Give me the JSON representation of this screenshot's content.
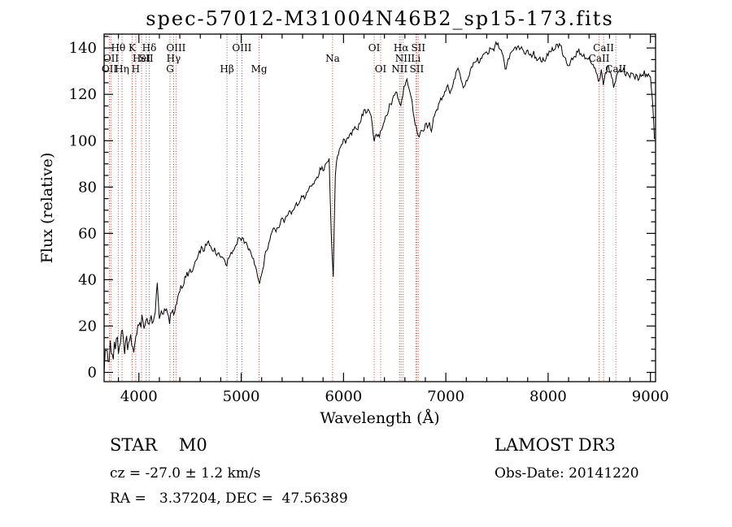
{
  "header": {
    "title": "spec-57012-M31004N46B2_sp15-173.fits"
  },
  "footer": {
    "left": {
      "class_line": "STAR    M0",
      "cz_line": "cz = -27.0 ± 1.2 km/s",
      "ra_dec_line": "RA =   3.37204, DEC =  47.56389"
    },
    "right": {
      "survey": "LAMOST DR3",
      "obs_date_line": "Obs-Date: 20141220"
    }
  },
  "chart_data": {
    "type": "line",
    "title": "spec-57012-M31004N46B2_sp15-173.fits",
    "xlabel": "Wavelength (Å)",
    "ylabel": "Flux (relative)",
    "xlim": [
      3660,
      9050
    ],
    "ylim": [
      -4,
      146
    ],
    "x_ticks": [
      4000,
      5000,
      6000,
      7000,
      8000,
      9000
    ],
    "x_minor_step": 200,
    "y_ticks": [
      0,
      20,
      40,
      60,
      80,
      100,
      120,
      140
    ],
    "y_minor_step": 5,
    "grid": false,
    "legend": "none",
    "line_color": "#000000",
    "marker_color": "#ab4437",
    "marker_label_color": "#8b2218",
    "spectral_lines": [
      {
        "wave": 3712,
        "label": "OII",
        "row": 3
      },
      {
        "wave": 3727,
        "label": "OII",
        "row": 2
      },
      {
        "wave": 3798,
        "label": "Hθ",
        "row": 1
      },
      {
        "wave": 3835,
        "label": "Hη",
        "row": 3
      },
      {
        "wave": 3934,
        "label": "K",
        "row": 1
      },
      {
        "wave": 3969,
        "label": "H",
        "row": 3
      },
      {
        "wave": 4026,
        "label": "HeI",
        "row": 2
      },
      {
        "wave": 4072,
        "label": "SII",
        "row": 2
      },
      {
        "wave": 4101,
        "label": "Hδ",
        "row": 1
      },
      {
        "wave": 4304,
        "label": "G",
        "row": 3
      },
      {
        "wave": 4340,
        "label": "Hγ",
        "row": 2
      },
      {
        "wave": 4363,
        "label": "OIII",
        "row": 1
      },
      {
        "wave": 4861,
        "label": "Hβ",
        "row": 3
      },
      {
        "wave": 4959,
        "label": "",
        "row": 0
      },
      {
        "wave": 5007,
        "label": "OIII",
        "row": 1
      },
      {
        "wave": 5175,
        "label": "Mg",
        "row": 3
      },
      {
        "wave": 5893,
        "label": "Na",
        "row": 2
      },
      {
        "wave": 6300,
        "label": "OI",
        "row": 1
      },
      {
        "wave": 6363,
        "label": "OI",
        "row": 3
      },
      {
        "wave": 6548,
        "label": "NII",
        "row": 3
      },
      {
        "wave": 6563,
        "label": "Hα",
        "row": 1
      },
      {
        "wave": 6583,
        "label": "NII",
        "row": 2
      },
      {
        "wave": 6707,
        "label": "Li",
        "row": 2
      },
      {
        "wave": 6716,
        "label": "SII",
        "row": 3
      },
      {
        "wave": 6731,
        "label": "SII",
        "row": 1
      },
      {
        "wave": 8498,
        "label": "CaII",
        "row": 2
      },
      {
        "wave": 8542,
        "label": "CaII",
        "row": 1
      },
      {
        "wave": 8662,
        "label": "CaII",
        "row": 3
      }
    ],
    "series": [
      {
        "name": "flux",
        "x_start": 3660,
        "x_step": 20,
        "values": [
          2,
          9,
          4,
          13,
          6,
          11,
          15,
          8,
          12,
          16,
          9,
          14,
          11,
          15,
          9,
          13,
          17,
          21,
          19,
          22,
          20,
          23,
          21,
          24,
          22,
          25,
          38,
          24,
          26,
          24,
          27,
          25,
          22,
          26,
          24,
          29,
          33,
          36,
          37,
          39,
          41,
          42,
          44,
          43,
          46,
          48,
          50,
          52,
          54,
          53,
          55,
          56,
          54,
          53,
          54,
          51,
          52,
          50,
          49,
          48,
          46,
          50,
          52,
          53,
          54,
          56,
          58,
          57,
          58,
          56,
          55,
          53,
          51,
          49,
          46,
          42,
          38,
          42,
          46,
          52,
          54,
          57,
          60,
          62,
          61,
          63,
          64,
          66,
          65,
          67,
          68,
          70,
          69,
          71,
          73,
          72,
          74,
          76,
          75,
          77,
          79,
          80,
          82,
          83,
          84,
          86,
          88,
          87,
          89,
          91,
          92,
          60,
          42,
          85,
          94,
          96,
          98,
          100,
          99,
          101,
          103,
          102,
          105,
          106,
          105,
          108,
          111,
          113,
          112,
          114,
          112,
          108,
          100,
          103,
          102,
          104,
          106,
          108,
          111,
          113,
          116,
          118,
          120,
          121,
          118,
          115,
          120,
          124,
          126,
          123,
          119,
          113,
          107,
          104,
          102,
          105,
          104,
          107,
          106,
          108,
          104,
          110,
          112,
          114,
          116,
          118,
          120,
          122,
          124,
          121,
          123,
          126,
          129,
          131,
          129,
          125,
          123,
          126,
          128,
          131,
          132,
          134,
          135,
          134,
          136,
          137,
          138,
          139,
          138,
          140,
          139,
          141,
          142,
          140,
          139,
          136,
          131,
          133,
          136,
          138,
          139,
          141,
          140,
          139,
          140,
          138,
          137,
          139,
          137,
          136,
          138,
          136,
          135,
          136,
          134,
          135,
          136,
          137,
          138,
          140,
          139,
          141,
          140,
          141,
          138,
          136,
          134,
          132,
          134,
          135,
          136,
          138,
          139,
          138,
          137,
          136,
          135,
          136,
          134,
          133,
          132,
          128,
          126,
          131,
          124,
          129,
          132,
          130,
          128,
          123,
          126,
          130,
          131,
          130,
          131,
          128,
          129,
          127,
          129,
          127,
          128,
          126,
          129,
          128,
          130,
          128,
          129,
          127,
          118,
          100
        ]
      }
    ],
    "noise": {
      "seed": 11,
      "amp_blue": 5,
      "amp_mid": 2.5,
      "amp_red": 1.6,
      "blue_limit": 4050,
      "mid_limit": 4500
    }
  }
}
